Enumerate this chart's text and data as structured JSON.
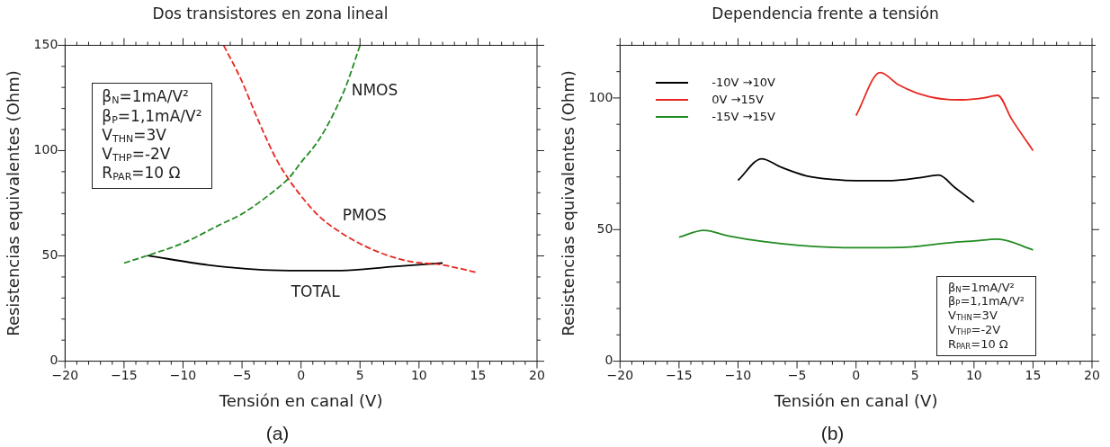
{
  "chart_data": [
    {
      "type": "line",
      "title": "Dos transistores en zona lineal",
      "xlabel": "Tensión en canal (V)",
      "ylabel": "Resistencias equivalentes (Ohm)",
      "series": [
        {
          "name": "NMOS",
          "color": "#228b22",
          "line_style": "dashed",
          "x": [
            -15,
            -13,
            -10,
            -6.95,
            -5,
            -2.4,
            -1,
            0,
            1.5,
            2.8,
            3.8,
            5
          ],
          "values": [
            46.6,
            50.2,
            56.1,
            64.6,
            70,
            80.3,
            87.2,
            94.4,
            105,
            118,
            130.5,
            150
          ]
        },
        {
          "name": "PMOS",
          "color": "#e8271f",
          "line_style": "dashed",
          "x": [
            -6.56,
            -5.1,
            -3.6,
            -2.1,
            -1,
            0,
            1.5,
            3.4,
            6.1,
            9.1,
            12,
            15
          ],
          "values": [
            150,
            134,
            114,
            96,
            86,
            78.5,
            69,
            61,
            52.9,
            47.5,
            45.7,
            42
          ]
        },
        {
          "name": "TOTAL",
          "color": "#000000",
          "line_style": "solid",
          "x": [
            -13,
            -7.9,
            -3.2,
            0,
            3.4,
            7.6,
            12
          ],
          "values": [
            50.2,
            45.7,
            43.3,
            43,
            43,
            44.8,
            46.6
          ]
        }
      ],
      "xlim": [
        -20,
        20
      ],
      "ylim": [
        0,
        150
      ],
      "xticks": [
        -20,
        {
          "value": -19,
          "label": null
        },
        {
          "value": -18,
          "label": null
        },
        {
          "value": -17,
          "label": null
        },
        {
          "value": -16,
          "label": null
        },
        -15,
        {
          "value": -14,
          "label": null
        },
        {
          "value": -13,
          "label": null
        },
        {
          "value": -12,
          "label": null
        },
        {
          "value": -11,
          "label": null
        },
        -10,
        {
          "value": -9,
          "label": null
        },
        {
          "value": -8,
          "label": null
        },
        {
          "value": -7,
          "label": null
        },
        {
          "value": -6,
          "label": null
        },
        -5,
        {
          "value": -4,
          "label": null
        },
        {
          "value": -3,
          "label": null
        },
        {
          "value": -2,
          "label": null
        },
        {
          "value": -1,
          "label": null
        },
        0,
        {
          "value": 1,
          "label": null
        },
        {
          "value": 2,
          "label": null
        },
        {
          "value": 3,
          "label": null
        },
        {
          "value": 4,
          "label": null
        },
        5,
        {
          "value": 6,
          "label": null
        },
        {
          "value": 7,
          "label": null
        },
        {
          "value": 8,
          "label": null
        },
        {
          "value": 9,
          "label": null
        },
        10,
        {
          "value": 11,
          "label": null
        },
        {
          "value": 12,
          "label": null
        },
        {
          "value": 13,
          "label": null
        },
        {
          "value": 14,
          "label": null
        },
        15,
        {
          "value": 16,
          "label": null
        },
        {
          "value": 17,
          "label": null
        },
        {
          "value": 18,
          "label": null
        },
        {
          "value": 19,
          "label": null
        },
        20
      ],
      "yticks": [
        0,
        {
          "value": 10,
          "label": null
        },
        {
          "value": 20,
          "label": null
        },
        {
          "value": 30,
          "label": null
        },
        {
          "value": 40,
          "label": null
        },
        50,
        {
          "value": 60,
          "label": null
        },
        {
          "value": 70,
          "label": null
        },
        {
          "value": 80,
          "label": null
        },
        {
          "value": 90,
          "label": null
        },
        100,
        {
          "value": 110,
          "label": null
        },
        {
          "value": 120,
          "label": null
        },
        {
          "value": 130,
          "label": null
        },
        {
          "value": 140,
          "label": null
        },
        150
      ],
      "grid": false,
      "marker": "none",
      "annotations": [
        "β$_{N}$=1mA/V²",
        "β$_{P}$=1,1mA/V²",
        "V$_{THN}$=3V",
        "V$_{THP}$=-2V",
        "R$_{PAR}$=10 Ω",
        "(a)"
      ]
    },
    {
      "type": "line",
      "title": "Dependencia frente a tensión",
      "xlabel": "Tensión en canal (V)",
      "ylabel": "Resistencias equivalentes (Ohm)",
      "series": [
        {
          "name": "-10V →10V",
          "color": "#000000",
          "x": [
            -10,
            -8,
            -6.3,
            -4.2,
            -1.8,
            0,
            3,
            5.4,
            7,
            8.4,
            10
          ],
          "values": [
            68.7,
            76.9,
            73.6,
            70.4,
            69,
            68.6,
            68.6,
            69.7,
            70.7,
            65.9,
            60.4
          ]
        },
        {
          "name": "0V →15V",
          "color": "#e8271f",
          "x": [
            0,
            2.05,
            3.6,
            5.7,
            7.8,
            9,
            10.8,
            12,
            13.2,
            15
          ],
          "values": [
            93.3,
            109.7,
            105,
            101.1,
            99.4,
            99.3,
            100,
            101,
            91.9,
            80
          ]
        },
        {
          "name": "-15V →15V",
          "color": "#228b22",
          "x": [
            -15,
            -12.9,
            -10.8,
            -7.8,
            -4.8,
            0,
            4.2,
            7.2,
            10,
            12,
            15
          ],
          "values": [
            47.1,
            49.7,
            47.6,
            45.4,
            44,
            43.1,
            43.3,
            44.7,
            45.7,
            46.4,
            42.3
          ]
        }
      ],
      "xlim": [
        -20,
        20
      ],
      "ylim": [
        0,
        120
      ],
      "xticks": [
        -20,
        {
          "value": -19,
          "label": null
        },
        {
          "value": -18,
          "label": null
        },
        {
          "value": -17,
          "label": null
        },
        {
          "value": -16,
          "label": null
        },
        -15,
        {
          "value": -14,
          "label": null
        },
        {
          "value": -13,
          "label": null
        },
        {
          "value": -12,
          "label": null
        },
        {
          "value": -11,
          "label": null
        },
        -10,
        {
          "value": -9,
          "label": null
        },
        {
          "value": -8,
          "label": null
        },
        {
          "value": -7,
          "label": null
        },
        {
          "value": -6,
          "label": null
        },
        -5,
        {
          "value": -4,
          "label": null
        },
        {
          "value": -3,
          "label": null
        },
        {
          "value": -2,
          "label": null
        },
        {
          "value": -1,
          "label": null
        },
        0,
        {
          "value": 1,
          "label": null
        },
        {
          "value": 2,
          "label": null
        },
        {
          "value": 3,
          "label": null
        },
        {
          "value": 4,
          "label": null
        },
        5,
        {
          "value": 6,
          "label": null
        },
        {
          "value": 7,
          "label": null
        },
        {
          "value": 8,
          "label": null
        },
        {
          "value": 9,
          "label": null
        },
        10,
        {
          "value": 11,
          "label": null
        },
        {
          "value": 12,
          "label": null
        },
        {
          "value": 13,
          "label": null
        },
        {
          "value": 14,
          "label": null
        },
        15,
        {
          "value": 16,
          "label": null
        },
        {
          "value": 17,
          "label": null
        },
        {
          "value": 18,
          "label": null
        },
        {
          "value": 19,
          "label": null
        },
        20
      ],
      "yticks": [
        0,
        {
          "value": 10,
          "label": null
        },
        {
          "value": 20,
          "label": null
        },
        {
          "value": 30,
          "label": null
        },
        {
          "value": 40,
          "label": null
        },
        50,
        {
          "value": 60,
          "label": null
        },
        {
          "value": 70,
          "label": null
        },
        {
          "value": 80,
          "label": null
        },
        {
          "value": 90,
          "label": null
        },
        100,
        {
          "value": 110,
          "label": null
        },
        {
          "value": 120,
          "label": null
        }
      ],
      "grid": false,
      "marker": "none",
      "legend": "top left",
      "annotations": [
        "β$_{N}$=1mA/V²",
        "β$_{P}$=1,1mA/V²",
        "V$_{THN}$=3V",
        "V$_{THP}$=-2V",
        "R$_{PAR}$=10 Ω",
        "(b)"
      ]
    }
  ]
}
